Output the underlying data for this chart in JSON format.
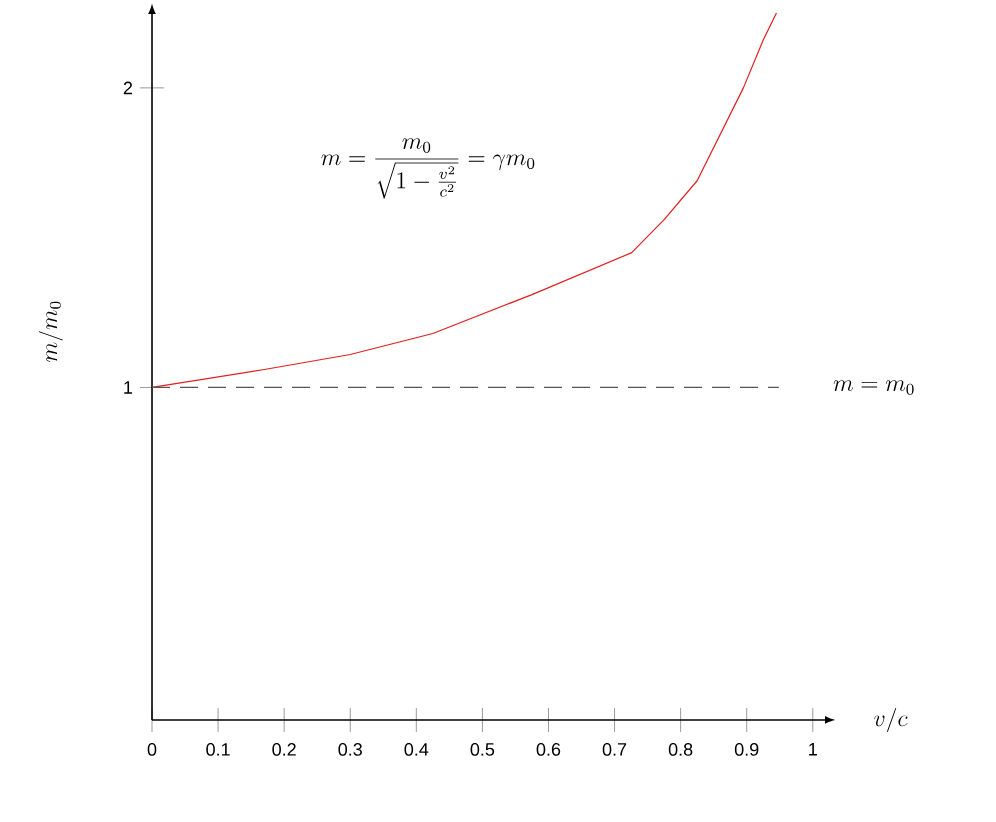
{
  "chart_data": {
    "type": "line",
    "xlabel": "v/c",
    "ylabel": "m/m_0",
    "x": [
      0,
      0.17,
      0.3,
      0.425,
      0.575,
      0.726,
      0.775,
      0.825,
      0.895,
      0.925,
      0.945
    ],
    "series": [
      {
        "color": "#e02020",
        "values": [
          1,
          1.06,
          1.11,
          1.18,
          1.31,
          1.45,
          1.56,
          1.69,
          2.0,
          2.16,
          2.25
        ]
      }
    ],
    "xlim": [
      0,
      1.02
    ],
    "ylim": [
      -0.11,
      2.25
    ],
    "xticks": [
      0,
      0.1,
      0.2,
      0.3,
      0.4,
      0.5,
      0.6,
      0.7,
      0.8,
      0.9,
      1
    ],
    "yticks": [
      1,
      2
    ],
    "ref_lines": [
      {
        "axis": "y",
        "value": 1,
        "label": "m = m_0",
        "color": "#555555",
        "line_style": "dashed"
      }
    ],
    "annotations": [
      "m = \\frac{m_0}{\\sqrt{1-\\frac{v^2}{c^2}}} = \\gamma m_0"
    ],
    "grid": false,
    "marker": "none",
    "line_style": "solid"
  }
}
